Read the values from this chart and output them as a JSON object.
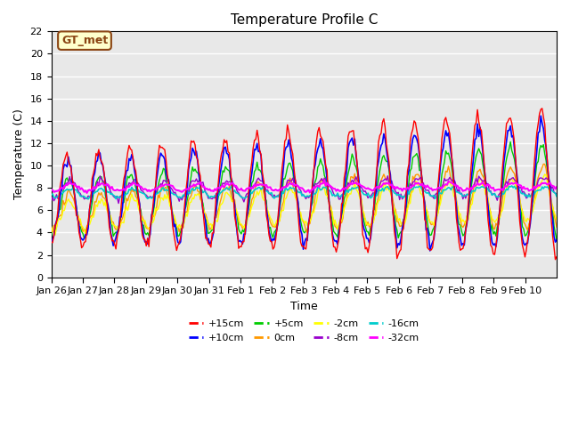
{
  "title": "Temperature Profile C",
  "xlabel": "Time",
  "ylabel": "Temperature (C)",
  "ylim": [
    0,
    22
  ],
  "annotation_text": "GT_met",
  "series_colors": {
    "+15cm": "#ff0000",
    "+10cm": "#0000ff",
    "+5cm": "#00cc00",
    "0cm": "#ff9900",
    "-2cm": "#ffff00",
    "-8cm": "#9900cc",
    "-16cm": "#00cccc",
    "-32cm": "#ff00ff"
  },
  "background_color": "#e8e8e8",
  "x_tick_labels": [
    "Jan 26",
    "Jan 27",
    "Jan 28",
    "Jan 29",
    "Jan 30",
    "Jan 31",
    "Feb 1",
    "Feb 2",
    "Feb 3",
    "Feb 4",
    "Feb 5",
    "Feb 6",
    "Feb 7",
    "Feb 8",
    "Feb 9",
    "Feb 10"
  ],
  "legend_order": [
    "+15cm",
    "+10cm",
    "+5cm",
    "0cm",
    "-2cm",
    "-8cm",
    "-16cm",
    "-32cm"
  ]
}
